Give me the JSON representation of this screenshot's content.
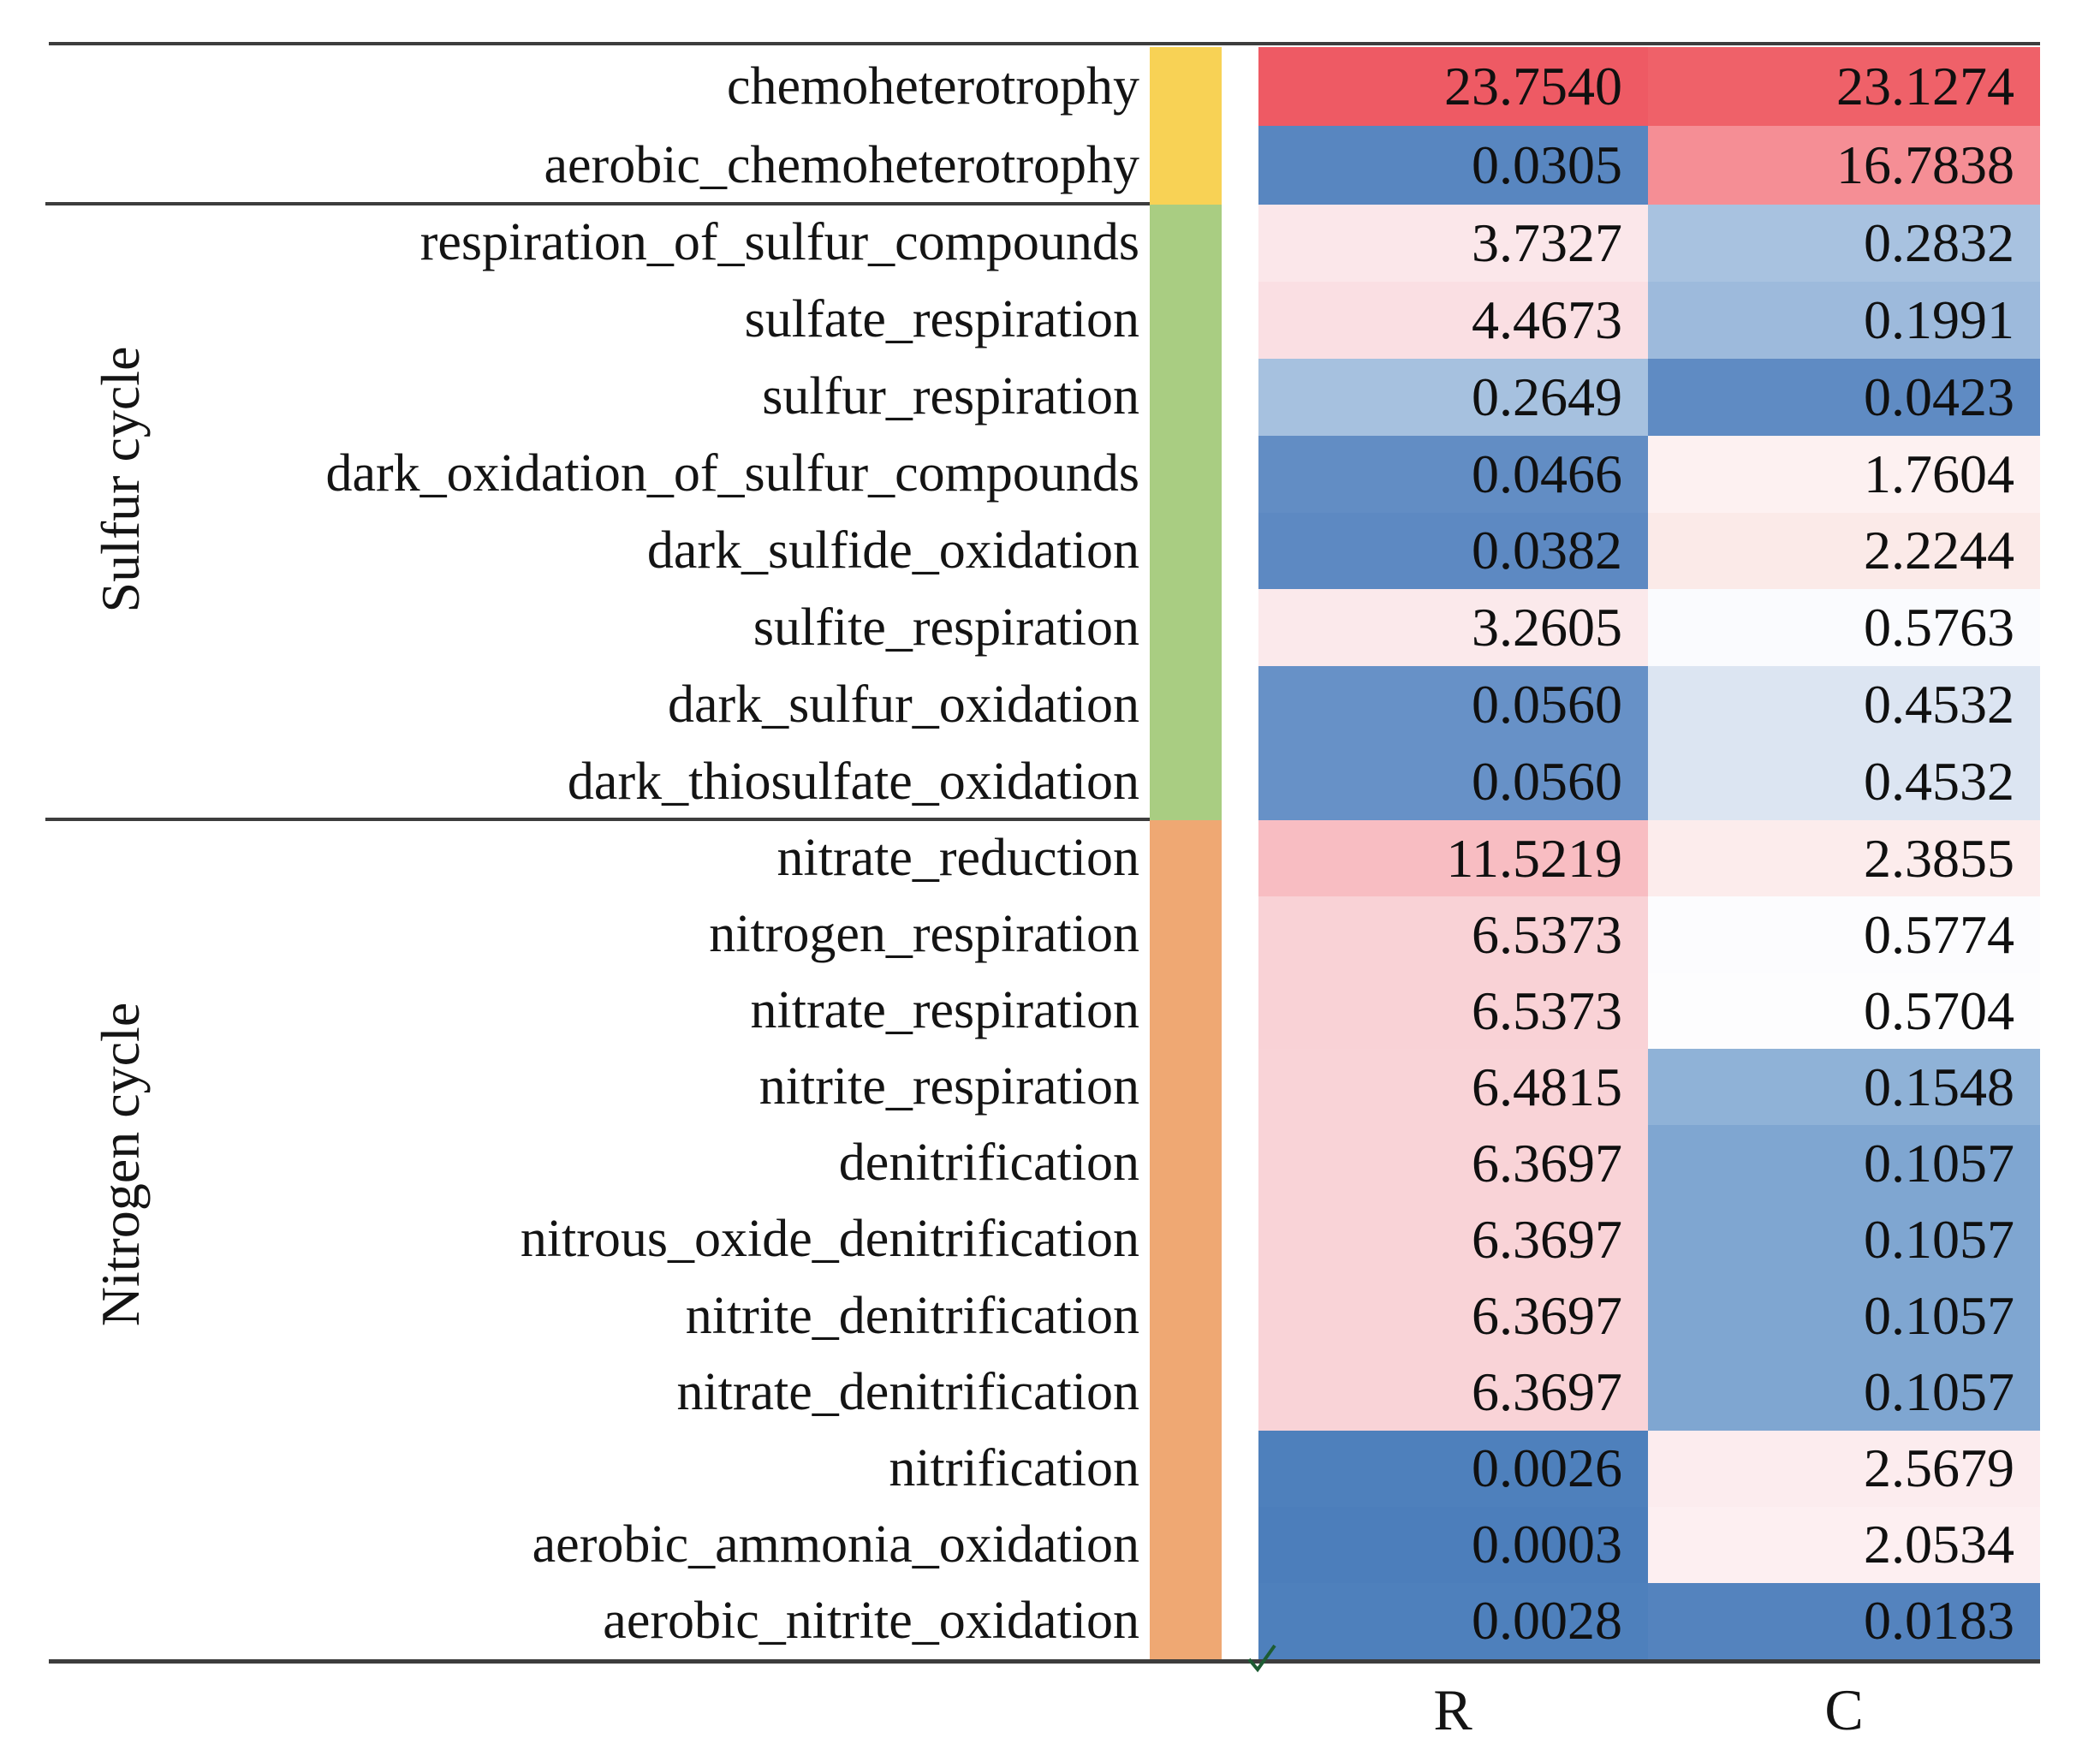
{
  "chart_data": {
    "type": "heatmap",
    "title": "",
    "columns": [
      "R",
      "C"
    ],
    "color_scale": {
      "high_color": "#EE5A64",
      "mid_color": "#FDFDFE",
      "low_color": "#4C7EBB",
      "description": "diverging scale: red = high abundance, white = ~0.55, blue = low abundance"
    },
    "groups": [
      {
        "label": "",
        "band_color": "#F8D255",
        "rows": [
          {
            "label": "chemoheterotrophy",
            "values": {
              "R": 23.754,
              "C": 23.1274
            },
            "display": {
              "R": "23.7540",
              "C": "23.1274"
            },
            "colors": {
              "R": "#EE5A64",
              "C": "#EF6169"
            }
          },
          {
            "label": "aerobic_chemoheterotrophy",
            "values": {
              "R": 0.0305,
              "C": 16.7838
            },
            "display": {
              "R": "0.0305",
              "C": "16.7838"
            },
            "colors": {
              "R": "#5886C0",
              "C": "#F58E95"
            }
          }
        ]
      },
      {
        "label": "Sulfur cycle",
        "band_color": "#A9CD82",
        "rows": [
          {
            "label": "respiration_of_sulfur_compounds",
            "values": {
              "R": 3.7327,
              "C": 0.2832
            },
            "display": {
              "R": "3.7327",
              "C": "0.2832"
            },
            "colors": {
              "R": "#FBE7EA",
              "C": "#A8C2E0"
            }
          },
          {
            "label": "sulfate_respiration",
            "values": {
              "R": 4.4673,
              "C": 0.1991
            },
            "display": {
              "R": "4.4673",
              "C": "0.1991"
            },
            "colors": {
              "R": "#FADFE3",
              "C": "#9DBADC"
            }
          },
          {
            "label": "sulfur_respiration",
            "values": {
              "R": 0.2649,
              "C": 0.0423
            },
            "display": {
              "R": "0.2649",
              "C": "0.0423"
            },
            "colors": {
              "R": "#A6C1DF",
              "C": "#5F8BC3"
            }
          },
          {
            "label": "dark_oxidation_of_sulfur_compounds",
            "values": {
              "R": 0.0466,
              "C": 1.7604
            },
            "display": {
              "R": "0.0466",
              "C": "1.7604"
            },
            "colors": {
              "R": "#628DC4",
              "C": "#FDF1F1"
            }
          },
          {
            "label": "dark_sulfide_oxidation",
            "values": {
              "R": 0.0382,
              "C": 2.2244
            },
            "display": {
              "R": "0.0382",
              "C": "2.2244"
            },
            "colors": {
              "R": "#5D89C2",
              "C": "#FBEAE8"
            }
          },
          {
            "label": "sulfite_respiration",
            "values": {
              "R": 3.2605,
              "C": 0.5763
            },
            "display": {
              "R": "3.2605",
              "C": "0.5763"
            },
            "colors": {
              "R": "#FBE9EB",
              "C": "#FAFBFE"
            }
          },
          {
            "label": "dark_sulfur_oxidation",
            "values": {
              "R": 0.056,
              "C": 0.4532
            },
            "display": {
              "R": "0.0560",
              "C": "0.4532"
            },
            "colors": {
              "R": "#6791C7",
              "C": "#DCE5F2"
            }
          },
          {
            "label": "dark_thiosulfate_oxidation",
            "values": {
              "R": 0.056,
              "C": 0.4532
            },
            "display": {
              "R": "0.0560",
              "C": "0.4532"
            },
            "colors": {
              "R": "#6791C7",
              "C": "#DCE5F2"
            }
          }
        ]
      },
      {
        "label": "Nitrogen cycle",
        "band_color": "#EFA873",
        "rows": [
          {
            "label": "nitrate_reduction",
            "values": {
              "R": 11.5219,
              "C": 2.3855
            },
            "display": {
              "R": "11.5219",
              "C": "2.3855"
            },
            "colors": {
              "R": "#F8BDC2",
              "C": "#FCECEC"
            }
          },
          {
            "label": "nitrogen_respiration",
            "values": {
              "R": 6.5373,
              "C": 0.5774
            },
            "display": {
              "R": "6.5373",
              "C": "0.5774"
            },
            "colors": {
              "R": "#F9D2D6",
              "C": "#FCFCFE"
            }
          },
          {
            "label": "nitrate_respiration",
            "values": {
              "R": 6.5373,
              "C": 0.5704
            },
            "display": {
              "R": "6.5373",
              "C": "0.5704"
            },
            "colors": {
              "R": "#F9D2D6",
              "C": "#FDFDFE"
            }
          },
          {
            "label": "nitrite_respiration",
            "values": {
              "R": 6.4815,
              "C": 0.1548
            },
            "display": {
              "R": "6.4815",
              "C": "0.1548"
            },
            "colors": {
              "R": "#F9D3D7",
              "C": "#8FB2D7"
            }
          },
          {
            "label": "denitrification",
            "values": {
              "R": 6.3697,
              "C": 0.1057
            },
            "display": {
              "R": "6.3697",
              "C": "0.1057"
            },
            "colors": {
              "R": "#F9D3D7",
              "C": "#7FA6D1"
            }
          },
          {
            "label": "nitrous_oxide_denitrification",
            "values": {
              "R": 6.3697,
              "C": 0.1057
            },
            "display": {
              "R": "6.3697",
              "C": "0.1057"
            },
            "colors": {
              "R": "#F9D3D7",
              "C": "#7FA6D1"
            }
          },
          {
            "label": "nitrite_denitrification",
            "values": {
              "R": 6.3697,
              "C": 0.1057
            },
            "display": {
              "R": "6.3697",
              "C": "0.1057"
            },
            "colors": {
              "R": "#F9D3D7",
              "C": "#7FA6D1"
            }
          },
          {
            "label": "nitrate_denitrification",
            "values": {
              "R": 6.3697,
              "C": 0.1057
            },
            "display": {
              "R": "6.3697",
              "C": "0.1057"
            },
            "colors": {
              "R": "#F9D3D7",
              "C": "#7FA6D1"
            }
          },
          {
            "label": "nitrification",
            "values": {
              "R": 0.0026,
              "C": 2.5679
            },
            "display": {
              "R": "0.0026",
              "C": "2.5679"
            },
            "colors": {
              "R": "#4E80BC",
              "C": "#FCECEE"
            }
          },
          {
            "label": "aerobic_ammonia_oxidation",
            "values": {
              "R": 0.0003,
              "C": 2.0534
            },
            "display": {
              "R": "0.0003",
              "C": "2.0534"
            },
            "colors": {
              "R": "#4C7EBB",
              "C": "#FDEFF1"
            }
          },
          {
            "label": "aerobic_nitrite_oxidation",
            "values": {
              "R": 0.0028,
              "C": 0.0183
            },
            "display": {
              "R": "0.0028",
              "C": "0.0183"
            },
            "colors": {
              "R": "#4E80BC",
              "C": "#5483BE"
            }
          }
        ]
      }
    ]
  }
}
